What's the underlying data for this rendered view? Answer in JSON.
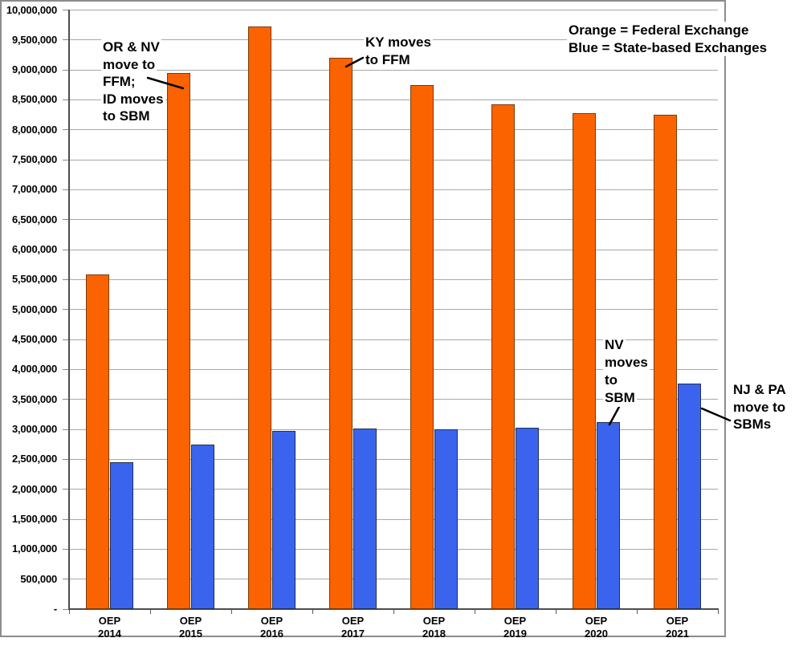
{
  "chart_data": {
    "type": "bar",
    "categories": [
      {
        "line1": "OEP",
        "line2": "2014"
      },
      {
        "line1": "OEP",
        "line2": "2015"
      },
      {
        "line1": "OEP",
        "line2": "2016"
      },
      {
        "line1": "OEP",
        "line2": "2017"
      },
      {
        "line1": "OEP",
        "line2": "2018"
      },
      {
        "line1": "OEP",
        "line2": "2019"
      },
      {
        "line1": "OEP",
        "line2": "2020"
      },
      {
        "line1": "OEP",
        "line2": "2021"
      }
    ],
    "series": [
      {
        "name": "Federal Exchange",
        "color": "#fb6300",
        "border_color": "#7a3a07",
        "values": [
          5580000,
          8950000,
          9720000,
          9200000,
          8750000,
          8420000,
          8280000,
          8250000
        ]
      },
      {
        "name": "State-based Exchanges",
        "color": "#3b64ee",
        "border_color": "#1f3050",
        "values": [
          2450000,
          2740000,
          2970000,
          3020000,
          3000000,
          3030000,
          3120000,
          3760000
        ]
      }
    ],
    "ylim": [
      0,
      10000000
    ],
    "ytick_interval": 500000,
    "ytick_labels": [
      "-",
      "500,000",
      "1,000,000",
      "1,500,000",
      "2,000,000",
      "2,500,000",
      "3,000,000",
      "3,500,000",
      "4,000,000",
      "4,500,000",
      "5,000,000",
      "5,500,000",
      "6,000,000",
      "6,500,000",
      "7,000,000",
      "7,500,000",
      "8,000,000",
      "8,500,000",
      "9,000,000",
      "9,500,000",
      "10,000,000"
    ],
    "grid": true,
    "legend_position": "top-right",
    "legend": {
      "lines": [
        "Orange = Federal Exchange",
        "Blue = State-based Exchanges"
      ]
    }
  },
  "annotations": {
    "or_nv": {
      "lines": [
        "OR & NV",
        "move to",
        "FFM;",
        "ID moves",
        "to SBM"
      ]
    },
    "ky": {
      "lines": [
        "KY moves",
        "to FFM"
      ]
    },
    "nv": {
      "lines": [
        "NV",
        "moves",
        "to",
        "SBM"
      ]
    },
    "nj_pa": {
      "lines": [
        "NJ & PA",
        "move to",
        "SBMs"
      ]
    }
  }
}
